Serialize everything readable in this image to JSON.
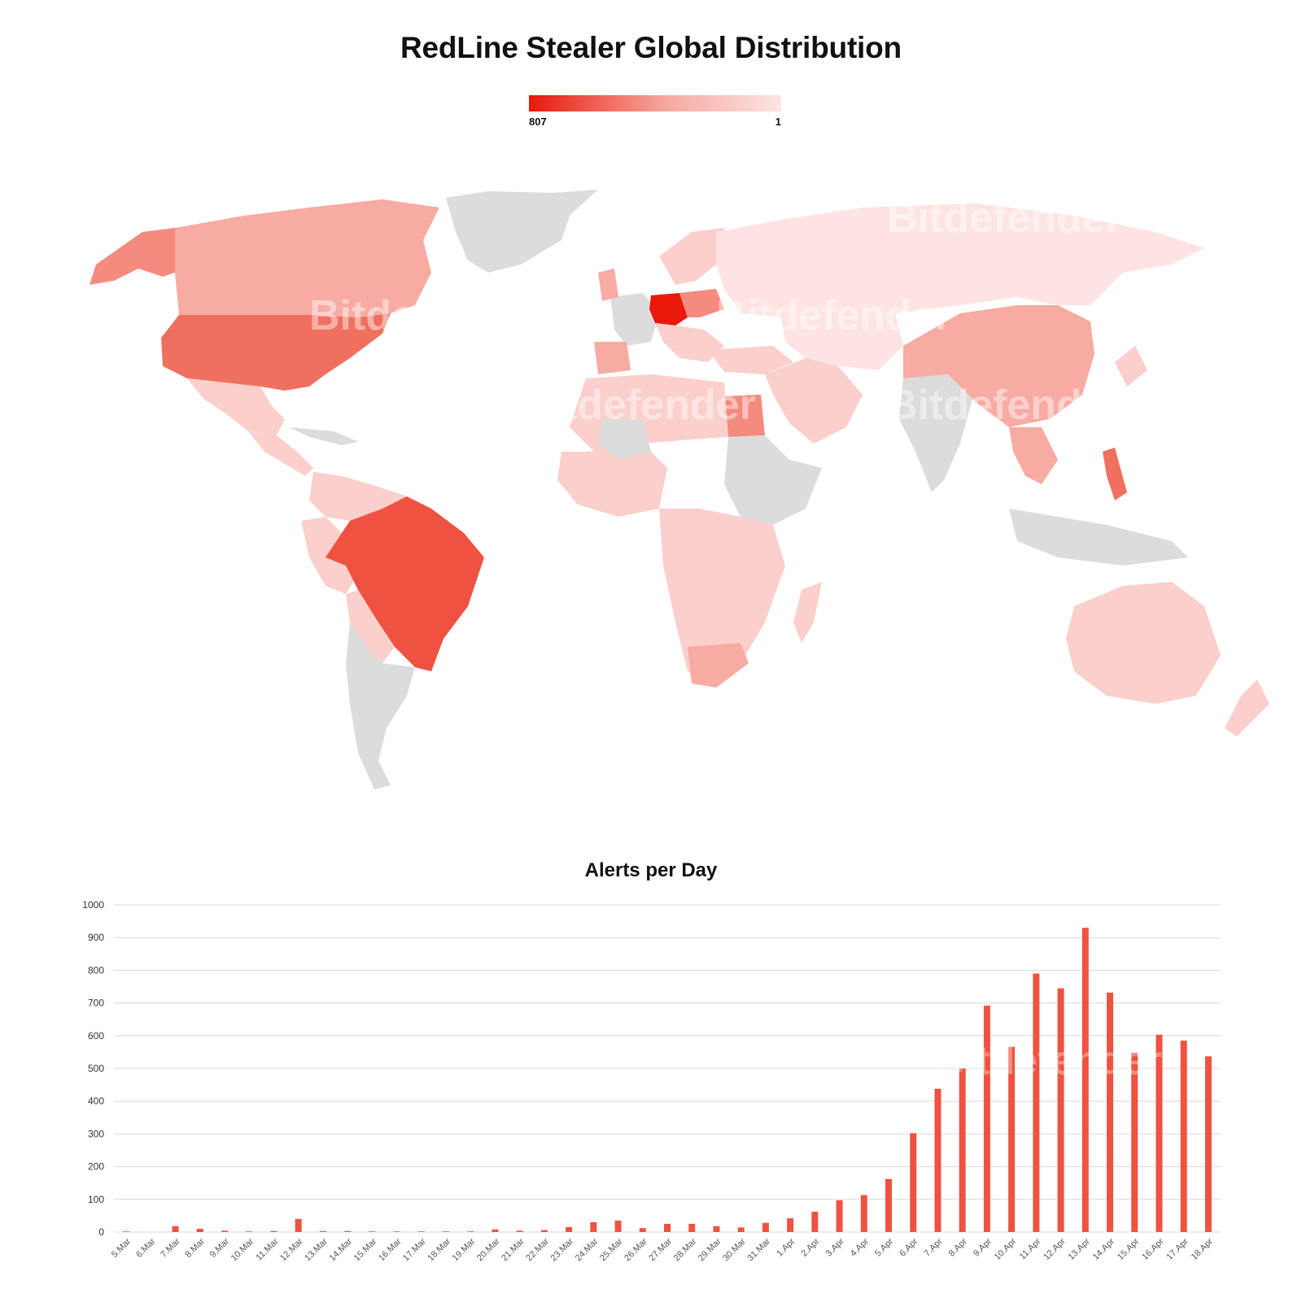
{
  "title": "RedLine Stealer Global Distribution",
  "legend": {
    "max_label": "807",
    "min_label": "1",
    "max_color": "#e8190b",
    "min_color": "#fde4e2"
  },
  "colors": {
    "no_data": "#dcdcdc",
    "bar": "#ef5240",
    "grid": "#d9d9d9",
    "choropleth_scale": [
      "#fde4e2",
      "#fbcfcb",
      "#f7aba3",
      "#f58a7e",
      "#f0705f",
      "#ef5240",
      "#e8190b"
    ]
  },
  "watermark_text": "Bitdefender",
  "chart_data": {
    "type": "bar",
    "title": "Alerts per Day",
    "xlabel": "",
    "ylabel": "",
    "ylim": [
      0,
      1000
    ],
    "yticks": [
      0,
      100,
      200,
      300,
      400,
      500,
      600,
      700,
      800,
      900,
      1000
    ],
    "grid": true,
    "categories": [
      "5.Mar",
      "6.Mar",
      "7.Mar",
      "8.Mar",
      "9.Mar",
      "10.Mar",
      "11.Mar",
      "12.Mar",
      "13.Mar",
      "14.Mar",
      "15.Mar",
      "16.Mar",
      "17.Mar",
      "18.Mar",
      "19.Mar",
      "20.Mar",
      "21.Mar",
      "22.Mar",
      "23.Mar",
      "24.Mar",
      "25.Mar",
      "26.Mar",
      "27.Mar",
      "28.Mar",
      "29.Mar",
      "30.Mar",
      "31.Mar",
      "1.Apr",
      "2.Apr",
      "3.Apr",
      "4.Apr",
      "5.Apr",
      "6.Apr",
      "7.Apr",
      "8.Apr",
      "9.Apr",
      "10.Apr",
      "11.Apr",
      "12.Apr",
      "13.Apr",
      "14.Apr",
      "15.Apr",
      "16.Apr",
      "17.Apr",
      "18.Apr"
    ],
    "values": [
      2,
      0,
      18,
      10,
      4,
      2,
      3,
      40,
      3,
      3,
      2,
      2,
      2,
      2,
      2,
      8,
      4,
      6,
      15,
      30,
      35,
      12,
      25,
      25,
      18,
      14,
      28,
      42,
      62,
      97,
      113,
      162,
      302,
      438,
      500,
      692,
      566,
      790,
      745,
      930,
      732,
      548,
      603,
      585,
      537
    ]
  }
}
